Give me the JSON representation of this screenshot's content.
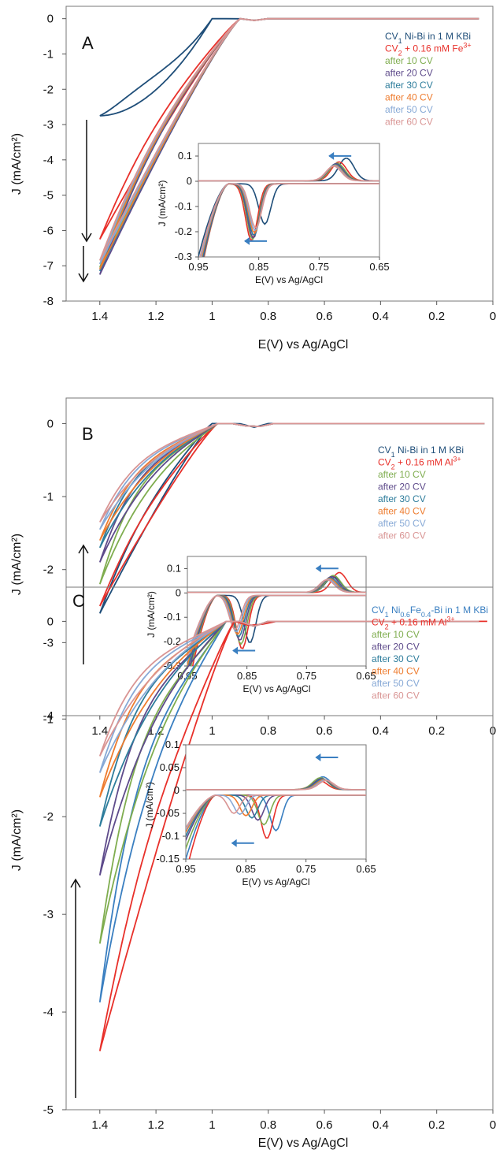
{
  "chart_data": [
    {
      "type": "line",
      "panel_label": "A",
      "xlabel": "E(V) vs Ag/AgCl",
      "ylabel": "J (mA/cm²)",
      "xlim": [
        1.52,
        0
      ],
      "ylim": [
        -8,
        0.35
      ],
      "x_ticks": [
        1.4,
        1.2,
        1,
        0.8,
        0.6,
        0.4,
        0.2,
        0
      ],
      "x_tick_labels": [
        "1.4",
        "1.2",
        "1",
        "0.8",
        "0.6",
        "0.4",
        "0.2",
        "0"
      ],
      "y_ticks": [
        0,
        -1,
        -2,
        -3,
        -4,
        -5,
        -6,
        -7,
        -8
      ],
      "y_tick_labels": [
        "0",
        "-1",
        "-2",
        "-3",
        "-4",
        "-5",
        "-6",
        "-7",
        "-8"
      ],
      "grid": false,
      "legend_position": "top-right",
      "arrow_direction": "down",
      "legend": [
        {
          "sub": "CV",
          "index": "1",
          "rest": " Ni-Bi in 1 M KBi",
          "color": "#1f4e79"
        },
        {
          "sub": "CV",
          "index": "2",
          "rest": " + 0.16 mM Fe",
          "sup": "3+",
          "color": "#e8302a"
        },
        {
          "label": "after 10 CV",
          "color": "#7fad4f"
        },
        {
          "label": "after 20 CV",
          "color": "#5e4b8b"
        },
        {
          "label": "after 30 CV",
          "color": "#2e7d9c"
        },
        {
          "label": "after 40 CV",
          "color": "#ee7c2f"
        },
        {
          "label": "after 50 CV",
          "color": "#87a9d6"
        },
        {
          "label": "after 60 CV",
          "color": "#d99594"
        }
      ],
      "series": [
        {
          "name": "CV1",
          "color": "#1f4e79",
          "onset": 1.0,
          "end": -2.75,
          "shape": "concave",
          "loop": 0.25
        },
        {
          "name": "CV2",
          "color": "#e8302a",
          "onset": 0.9,
          "end": -6.25,
          "shape": "linear",
          "loop": 0.1
        },
        {
          "name": "after 10 CV",
          "color": "#7fad4f",
          "onset": 0.9,
          "end": -7.05,
          "shape": "linear",
          "loop": 0.1
        },
        {
          "name": "after 20 CV",
          "color": "#5e4b8b",
          "onset": 0.9,
          "end": -7.25,
          "shape": "linear",
          "loop": 0.1
        },
        {
          "name": "after 30 CV",
          "color": "#2e7d9c",
          "onset": 0.9,
          "end": -7.15,
          "shape": "linear",
          "loop": 0.1
        },
        {
          "name": "after 40 CV",
          "color": "#ee7c2f",
          "onset": 0.9,
          "end": -7.1,
          "shape": "linear",
          "loop": 0.1
        },
        {
          "name": "after 50 CV",
          "color": "#87a9d6",
          "onset": 0.9,
          "end": -6.95,
          "shape": "linear",
          "loop": 0.1
        },
        {
          "name": "after 60 CV",
          "color": "#d99594",
          "onset": 0.9,
          "end": -6.85,
          "shape": "linear",
          "loop": 0.1
        }
      ],
      "inset": {
        "xlabel": "E(V) vs Ag/AgCl",
        "ylabel": "J (mA/cm²)",
        "xlim": [
          0.95,
          0.65
        ],
        "ylim": [
          -0.3,
          0.15
        ],
        "x_ticks": [
          0.95,
          0.85,
          0.75,
          0.65
        ],
        "x_tick_labels": [
          "0.95",
          "0.85",
          "0.75",
          "0.65"
        ],
        "y_ticks": [
          0.1,
          0,
          -0.1,
          -0.2,
          -0.3
        ],
        "y_tick_labels": [
          "0.1",
          "0",
          "-0.1",
          "-0.2",
          "-0.3"
        ],
        "series": [
          {
            "color": "#1f4e79",
            "red_peak": 0.84,
            "red_depth": -0.16,
            "ox_peak": 0.705,
            "ox_height": 0.09
          },
          {
            "color": "#e8302a",
            "red_peak": 0.862,
            "red_depth": -0.225,
            "ox_peak": 0.717,
            "ox_height": 0.075
          },
          {
            "color": "#7fad4f",
            "red_peak": 0.86,
            "red_depth": -0.22,
            "ox_peak": 0.72,
            "ox_height": 0.07
          },
          {
            "color": "#5e4b8b",
            "red_peak": 0.859,
            "red_depth": -0.215,
            "ox_peak": 0.722,
            "ox_height": 0.068
          },
          {
            "color": "#2e7d9c",
            "red_peak": 0.858,
            "red_depth": -0.205,
            "ox_peak": 0.723,
            "ox_height": 0.065
          },
          {
            "color": "#ee7c2f",
            "red_peak": 0.857,
            "red_depth": -0.195,
            "ox_peak": 0.724,
            "ox_height": 0.062
          },
          {
            "color": "#87a9d6",
            "red_peak": 0.856,
            "red_depth": -0.185,
            "ox_peak": 0.725,
            "ox_height": 0.06
          },
          {
            "color": "#d99594",
            "red_peak": 0.855,
            "red_depth": -0.175,
            "ox_peak": 0.726,
            "ox_height": 0.058
          }
        ]
      }
    },
    {
      "type": "line",
      "panel_label": "B",
      "xlabel": "E(V) vs Ag/AgCl",
      "ylabel": "J (mA/cm²)",
      "xlim": [
        1.52,
        0
      ],
      "ylim": [
        -4,
        0.35
      ],
      "x_ticks": [
        1.4,
        1.2,
        1,
        0.8,
        0.6,
        0.4,
        0.2,
        0
      ],
      "x_tick_labels": [
        "1.4",
        "1.2",
        "1",
        "0.8",
        "0.6",
        "0.4",
        "0.2",
        "0"
      ],
      "y_ticks": [
        0,
        -1,
        -2,
        -3,
        -4
      ],
      "y_tick_labels": [
        "0",
        "-1",
        "-2",
        "-3",
        "-4"
      ],
      "grid": false,
      "legend_position": "top-right",
      "arrow_direction": "up",
      "legend": [
        {
          "sub": "CV",
          "index": "1",
          "rest": " Ni-Bi in 1 M KBi",
          "color": "#1f4e79"
        },
        {
          "sub": "CV",
          "index": "2",
          "rest": " + 0.16 mM Al",
          "sup": "3+",
          "color": "#e8302a"
        },
        {
          "label": "after 10 CV",
          "color": "#7fad4f"
        },
        {
          "label": "after 20 CV",
          "color": "#5e4b8b"
        },
        {
          "label": "after 30 CV",
          "color": "#2e7d9c"
        },
        {
          "label": "after 40 CV",
          "color": "#ee7c2f"
        },
        {
          "label": "after 50 CV",
          "color": "#87a9d6"
        },
        {
          "label": "after 60 CV",
          "color": "#d99594"
        }
      ],
      "series": [
        {
          "name": "CV1",
          "color": "#1f4e79",
          "onset": 1.0,
          "end": -2.6,
          "shape": "linear",
          "loop": 0.1
        },
        {
          "name": "CV2",
          "color": "#e8302a",
          "onset": 0.98,
          "end": -2.5,
          "shape": "linear",
          "loop": 0.1
        },
        {
          "name": "after 10 CV",
          "color": "#7fad4f",
          "onset": 0.98,
          "end": -2.2,
          "shape": "knee",
          "loop": 0.15
        },
        {
          "name": "after 20 CV",
          "color": "#5e4b8b",
          "onset": 0.98,
          "end": -1.9,
          "shape": "knee",
          "loop": 0.15
        },
        {
          "name": "after 30 CV",
          "color": "#2e7d9c",
          "onset": 0.98,
          "end": -1.7,
          "shape": "knee",
          "loop": 0.15
        },
        {
          "name": "after 40 CV",
          "color": "#ee7c2f",
          "onset": 0.98,
          "end": -1.6,
          "shape": "knee",
          "loop": 0.15
        },
        {
          "name": "after 50 CV",
          "color": "#87a9d6",
          "onset": 0.98,
          "end": -1.45,
          "shape": "knee",
          "loop": 0.15
        },
        {
          "name": "after 60 CV",
          "color": "#d99594",
          "onset": 0.98,
          "end": -1.35,
          "shape": "knee",
          "loop": 0.15
        }
      ],
      "inset": {
        "xlabel": "E(V) vs Ag/AgCl",
        "ylabel": "J (mA/cm²)",
        "xlim": [
          0.95,
          0.65
        ],
        "ylim": [
          -0.3,
          0.15
        ],
        "x_ticks": [
          0.95,
          0.85,
          0.75,
          0.65
        ],
        "x_tick_labels": [
          "0.95",
          "0.85",
          "0.75",
          "0.65"
        ],
        "y_ticks": [
          0.1,
          0,
          -0.1,
          -0.2,
          -0.3
        ],
        "y_tick_labels": [
          "0.1",
          "0",
          "-0.1",
          "-0.2",
          "-0.3"
        ],
        "series": [
          {
            "color": "#1f4e79",
            "red_peak": 0.845,
            "red_depth": -0.195,
            "ox_peak": 0.705,
            "ox_height": 0.065
          },
          {
            "color": "#e8302a",
            "red_peak": 0.858,
            "red_depth": -0.22,
            "ox_peak": 0.695,
            "ox_height": 0.082
          },
          {
            "color": "#7fad4f",
            "red_peak": 0.86,
            "red_depth": -0.2,
            "ox_peak": 0.705,
            "ox_height": 0.07
          },
          {
            "color": "#5e4b8b",
            "red_peak": 0.862,
            "red_depth": -0.185,
            "ox_peak": 0.708,
            "ox_height": 0.065
          },
          {
            "color": "#2e7d9c",
            "red_peak": 0.864,
            "red_depth": -0.17,
            "ox_peak": 0.71,
            "ox_height": 0.06
          },
          {
            "color": "#ee7c2f",
            "red_peak": 0.866,
            "red_depth": -0.16,
            "ox_peak": 0.712,
            "ox_height": 0.057
          },
          {
            "color": "#87a9d6",
            "red_peak": 0.868,
            "red_depth": -0.15,
            "ox_peak": 0.714,
            "ox_height": 0.054
          },
          {
            "color": "#d99594",
            "red_peak": 0.87,
            "red_depth": -0.14,
            "ox_peak": 0.716,
            "ox_height": 0.052
          }
        ]
      }
    },
    {
      "type": "line",
      "panel_label": "C",
      "xlabel": "E(V) vs Ag/AgCl",
      "ylabel": "J (mA/cm²)",
      "xlim": [
        1.52,
        0
      ],
      "ylim": [
        -5,
        0.35
      ],
      "x_ticks": [
        1.4,
        1.2,
        1,
        0.8,
        0.6,
        0.4,
        0.2,
        0
      ],
      "x_tick_labels": [
        "1.4",
        "1.2",
        "1",
        "0.8",
        "0.6",
        "0.4",
        "0.2",
        "0"
      ],
      "y_ticks": [
        0,
        -1,
        -2,
        -3,
        -4,
        -5
      ],
      "y_tick_labels": [
        "0",
        "-1",
        "-2",
        "-3",
        "-4",
        "-5"
      ],
      "grid": false,
      "legend_position": "top-right",
      "arrow_direction": "up",
      "legend": [
        {
          "sub": "CV",
          "index": "1",
          "rest": " Ni",
          "rest_sub": "0.6",
          "rest2": "Fe",
          "rest_sub2": "0.4",
          "rest3": "-Bi in 1 M KBi",
          "color": "#3a7fc1"
        },
        {
          "sub": "CV",
          "index": "2",
          "rest": " + 0.16 mM Al",
          "sup": "3+",
          "color": "#e8302a"
        },
        {
          "label": "after 10 CV",
          "color": "#7fad4f"
        },
        {
          "label": "after 20 CV",
          "color": "#5e4b8b"
        },
        {
          "label": "after 30 CV",
          "color": "#2e7d9c"
        },
        {
          "label": "after 40 CV",
          "color": "#ee7c2f"
        },
        {
          "label": "after 50 CV",
          "color": "#87a9d6"
        },
        {
          "label": "after 60 CV",
          "color": "#d99594"
        }
      ],
      "series": [
        {
          "name": "CV1",
          "color": "#3a7fc1",
          "onset": 0.95,
          "end": -3.9,
          "shape": "knee",
          "loop": 0.2
        },
        {
          "name": "CV2",
          "color": "#e8302a",
          "onset": 0.92,
          "end": -4.4,
          "shape": "linear",
          "loop": 0.15
        },
        {
          "name": "after 10 CV",
          "color": "#7fad4f",
          "onset": 0.95,
          "end": -3.3,
          "shape": "knee",
          "loop": 0.25
        },
        {
          "name": "after 20 CV",
          "color": "#5e4b8b",
          "onset": 0.95,
          "end": -2.6,
          "shape": "knee",
          "loop": 0.25
        },
        {
          "name": "after 30 CV",
          "color": "#2e7d9c",
          "onset": 0.95,
          "end": -2.1,
          "shape": "knee",
          "loop": 0.25
        },
        {
          "name": "after 40 CV",
          "color": "#ee7c2f",
          "onset": 0.95,
          "end": -1.8,
          "shape": "knee",
          "loop": 0.25
        },
        {
          "name": "after 50 CV",
          "color": "#87a9d6",
          "onset": 0.95,
          "end": -1.55,
          "shape": "knee",
          "loop": 0.25
        },
        {
          "name": "after 60 CV",
          "color": "#d99594",
          "onset": 0.95,
          "end": -1.38,
          "shape": "knee",
          "loop": 0.25
        }
      ],
      "inset": {
        "xlabel": "E(V) vs Ag/AgCl",
        "ylabel": "J (mA/cm²)",
        "xlim": [
          0.95,
          0.65
        ],
        "ylim": [
          -0.15,
          0.1
        ],
        "x_ticks": [
          0.95,
          0.85,
          0.75,
          0.65
        ],
        "x_tick_labels": [
          "0.95",
          "0.85",
          "0.75",
          "0.65"
        ],
        "y_ticks": [
          0.1,
          0.05,
          0,
          -0.05,
          -0.1,
          -0.15
        ],
        "y_tick_labels": [
          "0.1",
          "0.05",
          "0",
          "-0.05",
          "-0.1",
          "-0.15"
        ],
        "series": [
          {
            "color": "#3a7fc1",
            "red_peak": 0.8,
            "red_depth": -0.078,
            "ox_peak": 0.722,
            "ox_height": 0.028
          },
          {
            "color": "#e8302a",
            "red_peak": 0.815,
            "red_depth": -0.095,
            "ox_peak": 0.728,
            "ox_height": 0.02
          },
          {
            "color": "#7fad4f",
            "red_peak": 0.82,
            "red_depth": -0.065,
            "ox_peak": 0.726,
            "ox_height": 0.026
          },
          {
            "color": "#5e4b8b",
            "red_peak": 0.83,
            "red_depth": -0.055,
            "ox_peak": 0.724,
            "ox_height": 0.024
          },
          {
            "color": "#2e7d9c",
            "red_peak": 0.84,
            "red_depth": -0.05,
            "ox_peak": 0.722,
            "ox_height": 0.023
          },
          {
            "color": "#ee7c2f",
            "red_peak": 0.85,
            "red_depth": -0.045,
            "ox_peak": 0.72,
            "ox_height": 0.022
          },
          {
            "color": "#87a9d6",
            "red_peak": 0.86,
            "red_depth": -0.042,
            "ox_peak": 0.718,
            "ox_height": 0.021
          },
          {
            "color": "#d99594",
            "red_peak": 0.87,
            "red_depth": -0.04,
            "ox_peak": 0.716,
            "ox_height": 0.02
          }
        ]
      }
    }
  ]
}
